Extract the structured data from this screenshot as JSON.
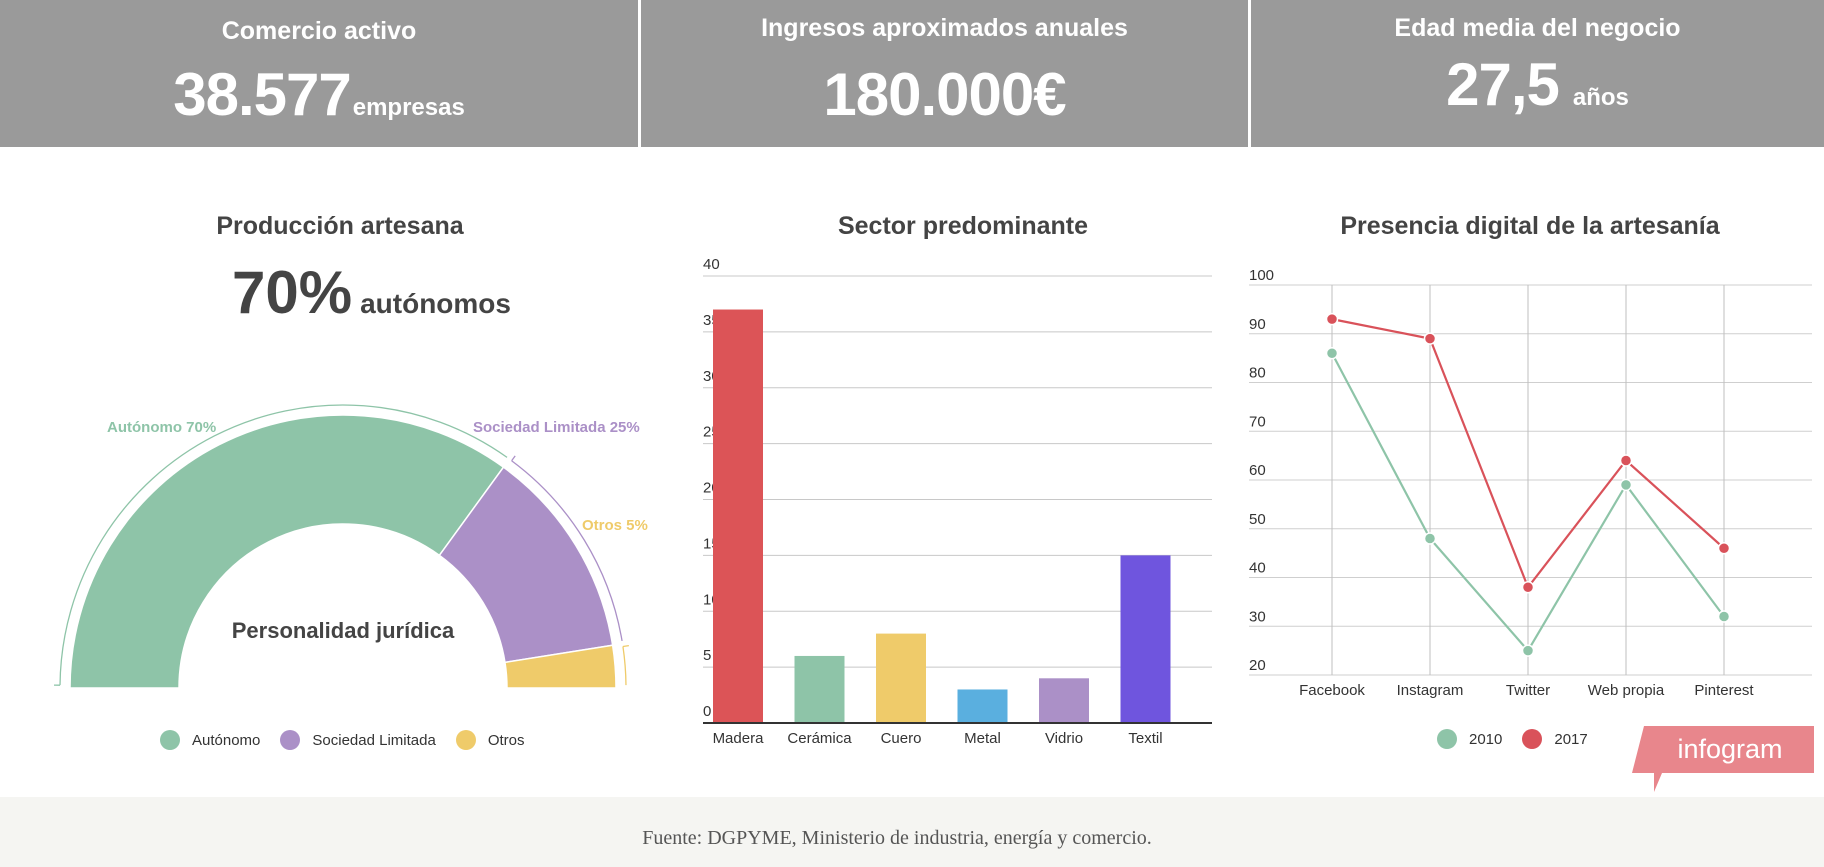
{
  "kpis": [
    {
      "title": "Comercio activo",
      "value": "38.577",
      "unit": "empresas"
    },
    {
      "title": "Ingresos aproximados anuales",
      "value": "180.000€",
      "unit": ""
    },
    {
      "title": "Edad media del negocio",
      "value": "27,5",
      "unit": "años"
    }
  ],
  "production": {
    "title": "Producción artesana",
    "big_value": "70%",
    "big_label": "autónomos"
  },
  "sector": {
    "title": "Sector predominante"
  },
  "digital": {
    "title": "Presencia digital de la artesanía"
  },
  "brand": "infogram",
  "footer": "Fuente: DGPYME, Ministerio de industria, energía y comercio.",
  "chart_data": [
    {
      "type": "pie",
      "variant": "semi-donut",
      "center_label": "Personalidad jurídica",
      "categories": [
        "Autónomo",
        "Sociedad Limitada",
        "Otros"
      ],
      "values": [
        70,
        25,
        5
      ],
      "slice_labels": [
        "Autónomo 70%",
        "Sociedad Limitada 25%",
        "Otros 5%"
      ],
      "colors": [
        "#8ec4a8",
        "#ab90c7",
        "#efcb6a"
      ],
      "legend": "bottom"
    },
    {
      "type": "bar",
      "title": "Sector predominante",
      "categories": [
        "Madera",
        "Cerámica",
        "Cuero",
        "Metal",
        "Vidrio",
        "Textil"
      ],
      "values": [
        37,
        6,
        8,
        3,
        4,
        15
      ],
      "colors": [
        "#dc5457",
        "#8ec4a8",
        "#efcb6a",
        "#5aafdf",
        "#ab90c7",
        "#6f55de"
      ],
      "ylim": [
        0,
        40
      ],
      "yticks": [
        0,
        5,
        10,
        15,
        20,
        25,
        30,
        35,
        40
      ],
      "grid": true
    },
    {
      "type": "line",
      "title": "Presencia digital de la artesanía",
      "categories": [
        "Facebook",
        "Instagram",
        "Twitter",
        "Web propia",
        "Pinterest"
      ],
      "series": [
        {
          "name": "2010",
          "values": [
            86,
            48,
            25,
            59,
            32
          ],
          "color": "#8ec4a8"
        },
        {
          "name": "2017",
          "values": [
            93,
            89,
            38,
            64,
            46
          ],
          "color": "#d9525a"
        }
      ],
      "ylim": [
        20,
        100
      ],
      "yticks": [
        20,
        30,
        40,
        50,
        60,
        70,
        80,
        90,
        100
      ],
      "grid": true,
      "legend": "bottom"
    }
  ]
}
